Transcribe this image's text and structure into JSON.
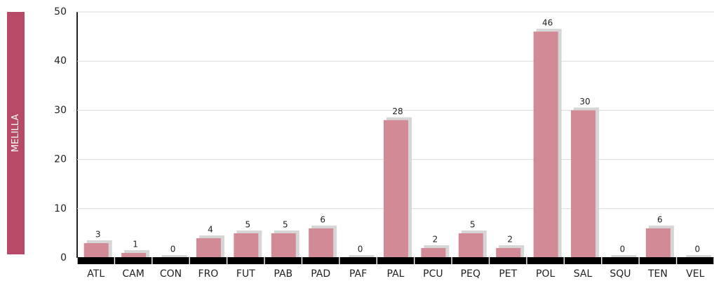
{
  "chart_data": {
    "type": "bar",
    "title": "MELILLA",
    "categories": [
      "ATL",
      "CAM",
      "CON",
      "FRO",
      "FUT",
      "PAB",
      "PAD",
      "PAF",
      "PAL",
      "PCU",
      "PEQ",
      "PET",
      "POL",
      "SAL",
      "SQU",
      "TEN",
      "VEL"
    ],
    "values": [
      3,
      1,
      0,
      4,
      5,
      5,
      6,
      0,
      28,
      2,
      5,
      2,
      46,
      30,
      0,
      6,
      0
    ],
    "color": "#d38a97",
    "ylim": [
      0,
      50
    ],
    "yticks": [
      0,
      10,
      20,
      30,
      40,
      50
    ],
    "grid": true
  }
}
